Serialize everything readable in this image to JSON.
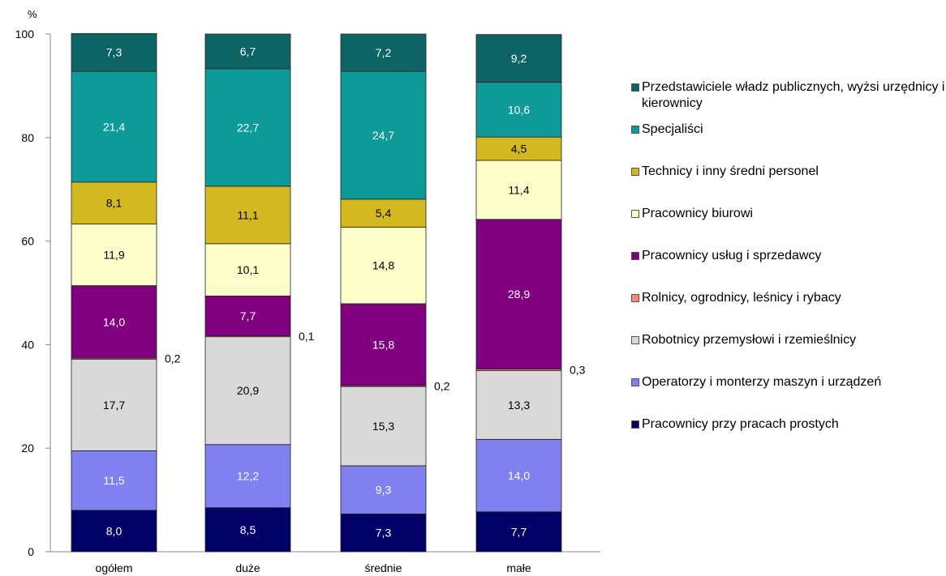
{
  "chart_data": {
    "type": "bar",
    "stacked": true,
    "unit": "%",
    "ylim": [
      0,
      100
    ],
    "yticks": [
      0,
      20,
      40,
      60,
      80,
      100
    ],
    "categories": [
      "ogółem",
      "duże",
      "średnie",
      "małe"
    ],
    "series": [
      {
        "name": "Pracownicy przy pracach prostych",
        "color": "#000066",
        "values": [
          8.0,
          8.5,
          7.3,
          7.7
        ],
        "labels": [
          "8,0",
          "8,5",
          "7,3",
          "7,7"
        ]
      },
      {
        "name": "Operatorzy i monterzy maszyn i urządzeń",
        "color": "#8080f0",
        "values": [
          11.5,
          12.2,
          9.3,
          14.0
        ],
        "labels": [
          "11,5",
          "12,2",
          "9,3",
          "14,0"
        ]
      },
      {
        "name": "Robotnicy przemysłowi i rzemieślnicy",
        "color": "#d9d9d9",
        "values": [
          17.7,
          20.9,
          15.3,
          13.3
        ],
        "labels": [
          "17,7",
          "20,9",
          "15,3",
          "13,3"
        ]
      },
      {
        "name": "Rolnicy, ogrodnicy, leśnicy i rybacy",
        "color": "#ff8080",
        "values": [
          0.2,
          0.1,
          0.2,
          0.3
        ],
        "labels": [
          "0,2",
          "0,1",
          "0,2",
          "0,3"
        ]
      },
      {
        "name": "Pracownicy usług i sprzedawcy",
        "color": "#800080",
        "values": [
          14.0,
          7.7,
          15.8,
          28.9
        ],
        "labels": [
          "14,0",
          "7,7",
          "15,8",
          "28,9"
        ]
      },
      {
        "name": "Pracownicy biurowi",
        "color": "#ffffcc",
        "values": [
          11.9,
          10.1,
          14.8,
          11.4
        ],
        "labels": [
          "11,9",
          "10,1",
          "14,8",
          "11,4"
        ]
      },
      {
        "name": "Technicy i inny średni personel",
        "color": "#d4b820",
        "values": [
          8.1,
          11.1,
          5.4,
          4.5
        ],
        "labels": [
          "8,1",
          "11,1",
          "5,4",
          "4,5"
        ]
      },
      {
        "name": "Specjaliści",
        "color": "#0f9a9a",
        "values": [
          21.4,
          22.7,
          24.7,
          10.6
        ],
        "labels": [
          "21,4",
          "22,7",
          "24,7",
          "10,6"
        ]
      },
      {
        "name": "Przedstawiciele władz publicznych, wyżsi urzędnicy i kierownicy",
        "color": "#0e6464",
        "values": [
          7.3,
          6.7,
          7.2,
          9.2
        ],
        "labels": [
          "7,3",
          "6,7",
          "7,2",
          "9,2"
        ]
      }
    ],
    "legend": {
      "placement": "right",
      "items": [
        {
          "label": "Przedstawiciele władz publicznych, wyżsi urzędnicy i kierownicy",
          "color": "#0e6464"
        },
        {
          "label": "Specjaliści",
          "color": "#0f9a9a"
        },
        {
          "label": "Technicy i inny średni personel",
          "color": "#d4b820"
        },
        {
          "label": "Pracownicy biurowi",
          "color": "#ffffcc"
        },
        {
          "label": "Pracownicy usług i sprzedawcy",
          "color": "#800080"
        },
        {
          "label": "Rolnicy, ogrodnicy, leśnicy i rybacy",
          "color": "#ff8080"
        },
        {
          "label": "Robotnicy przemysłowi i rzemieślnicy",
          "color": "#d9d9d9"
        },
        {
          "label": "Operatorzy i monterzy maszyn i urządzeń",
          "color": "#8080f0"
        },
        {
          "label": "Pracownicy przy pracach prostych",
          "color": "#000066"
        }
      ]
    }
  }
}
